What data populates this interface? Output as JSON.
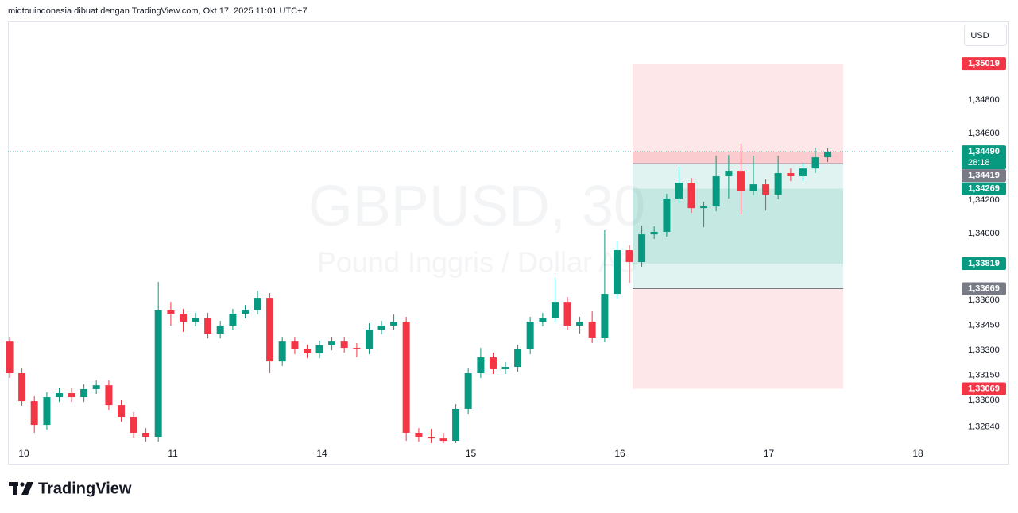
{
  "header": {
    "attribution": "midtouindonesia dibuat dengan TradingView.com, Okt 17, 2025 11:01 UTC+7"
  },
  "currency": "USD",
  "logo": "TradingView",
  "chart_data": {
    "type": "candlestick",
    "symbol": "GBPUSD, 30",
    "description": "Pound Inggris / Dollar AS",
    "up_color": "#089981",
    "down_color": "#f23645",
    "grid": false,
    "xlim": [
      -0.107,
      6.24
    ],
    "xticks": [
      {
        "value": 0,
        "label": "10"
      },
      {
        "value": 1,
        "label": "11"
      },
      {
        "value": 2,
        "label": "14"
      },
      {
        "value": 3,
        "label": "15"
      },
      {
        "value": 4,
        "label": "16"
      },
      {
        "value": 5,
        "label": "17"
      },
      {
        "value": 6,
        "label": "18"
      }
    ],
    "ylim": [
      1.32743,
      1.35267
    ],
    "yticks": [
      {
        "value": 1.348,
        "label": "1,34800"
      },
      {
        "value": 1.346,
        "label": "1,34600"
      },
      {
        "value": 1.342,
        "label": "1,34200"
      },
      {
        "value": 1.34,
        "label": "1,34000"
      },
      {
        "value": 1.336,
        "label": "1,33600"
      },
      {
        "value": 1.3345,
        "label": "1,33450"
      },
      {
        "value": 1.333,
        "label": "1,33300"
      },
      {
        "value": 1.3315,
        "label": "1,33150"
      },
      {
        "value": 1.33,
        "label": "1,33000"
      },
      {
        "value": 1.3284,
        "label": "1,32840"
      }
    ],
    "x": [
      -0.096,
      -0.013,
      0.07,
      0.154,
      0.237,
      0.32,
      0.403,
      0.486,
      0.57,
      0.653,
      0.736,
      0.819,
      0.902,
      0.986,
      1.069,
      1.152,
      1.235,
      1.318,
      1.402,
      1.485,
      1.568,
      1.651,
      1.734,
      1.818,
      1.901,
      1.984,
      2.067,
      2.15,
      2.234,
      2.317,
      2.4,
      2.483,
      2.566,
      2.65,
      2.733,
      2.816,
      2.899,
      2.982,
      3.066,
      3.149,
      3.232,
      3.315,
      3.398,
      3.482,
      3.565,
      3.648,
      3.731,
      3.814,
      3.898,
      3.981,
      4.064,
      4.147,
      4.23,
      4.314,
      4.397,
      4.48,
      4.563,
      4.646,
      4.73,
      4.813,
      4.896,
      4.979,
      5.062,
      5.146,
      5.229,
      5.312,
      5.395
    ],
    "open": [
      1.33352,
      1.33162,
      1.32995,
      1.32852,
      1.33019,
      1.33043,
      1.33019,
      1.33067,
      1.3309,
      1.32971,
      1.329,
      1.32805,
      1.32781,
      1.33543,
      1.33519,
      1.33471,
      1.33495,
      1.334,
      1.33448,
      1.33519,
      1.33543,
      1.33614,
      1.33233,
      1.33352,
      1.33305,
      1.33281,
      1.33329,
      1.33352,
      1.33314,
      1.33305,
      1.33424,
      1.33448,
      1.33471,
      1.32805,
      1.32781,
      1.32771,
      1.32757,
      1.32948,
      1.33162,
      1.33257,
      1.33186,
      1.332,
      1.33305,
      1.33471,
      1.33495,
      1.3359,
      1.33448,
      1.33471,
      1.33376,
      1.33638,
      1.339,
      1.33829,
      1.33995,
      1.3401,
      1.3421,
      1.34305,
      1.34152,
      1.34162,
      1.34343,
      1.34376,
      1.34257,
      1.34295,
      1.34233,
      1.34362,
      1.34343,
      1.3439,
      1.34457
    ],
    "high": [
      1.33381,
      1.3319,
      1.33024,
      1.33048,
      1.33076,
      1.33076,
      1.33095,
      1.33119,
      1.33119,
      1.33,
      1.32929,
      1.32833,
      1.3371,
      1.3359,
      1.33548,
      1.33524,
      1.33524,
      1.33476,
      1.33548,
      1.33571,
      1.33657,
      1.33643,
      1.33381,
      1.33381,
      1.33333,
      1.33357,
      1.33381,
      1.33381,
      1.33343,
      1.33462,
      1.33476,
      1.33514,
      1.335,
      1.32833,
      1.32829,
      1.32805,
      1.32976,
      1.3319,
      1.33314,
      1.33286,
      1.33229,
      1.33333,
      1.335,
      1.33524,
      1.33733,
      1.33619,
      1.335,
      1.33533,
      1.34019,
      1.33952,
      1.33929,
      1.34048,
      1.34043,
      1.34238,
      1.344,
      1.34333,
      1.3419,
      1.34467,
      1.34471,
      1.34538,
      1.34467,
      1.34324,
      1.34467,
      1.3439,
      1.34419,
      1.34514,
      1.3451
    ],
    "low": [
      1.33133,
      1.32967,
      1.32805,
      1.32824,
      1.3299,
      1.3299,
      1.3299,
      1.33038,
      1.32943,
      1.32871,
      1.32776,
      1.32752,
      1.32752,
      1.33448,
      1.3341,
      1.33443,
      1.33371,
      1.33371,
      1.33419,
      1.33491,
      1.33514,
      1.33162,
      1.33205,
      1.33276,
      1.33252,
      1.33252,
      1.333,
      1.33286,
      1.33257,
      1.33276,
      1.33395,
      1.33419,
      1.32757,
      1.32752,
      1.32743,
      1.32743,
      1.32743,
      1.32919,
      1.33133,
      1.33157,
      1.33157,
      1.33171,
      1.33276,
      1.33443,
      1.33467,
      1.33419,
      1.334,
      1.33343,
      1.33348,
      1.3361,
      1.33705,
      1.338,
      1.33967,
      1.33981,
      1.34181,
      1.34124,
      1.34038,
      1.34133,
      1.3421,
      1.34114,
      1.34229,
      1.34138,
      1.34205,
      1.34314,
      1.34314,
      1.34362,
      1.34429
    ],
    "close": [
      1.33162,
      1.32995,
      1.32852,
      1.33019,
      1.33043,
      1.33019,
      1.33067,
      1.3309,
      1.32971,
      1.329,
      1.32805,
      1.32781,
      1.33543,
      1.33519,
      1.33471,
      1.33495,
      1.334,
      1.33448,
      1.33519,
      1.33543,
      1.33614,
      1.33233,
      1.33352,
      1.33305,
      1.33281,
      1.33329,
      1.33352,
      1.33314,
      1.33305,
      1.33424,
      1.33448,
      1.33471,
      1.32805,
      1.32781,
      1.32771,
      1.32757,
      1.32948,
      1.33162,
      1.33257,
      1.33186,
      1.332,
      1.33305,
      1.33471,
      1.33495,
      1.3359,
      1.33448,
      1.33471,
      1.33376,
      1.33638,
      1.339,
      1.33829,
      1.33995,
      1.3401,
      1.3421,
      1.34305,
      1.34152,
      1.34162,
      1.34343,
      1.34376,
      1.34257,
      1.34295,
      1.34233,
      1.34362,
      1.34343,
      1.3439,
      1.34457,
      1.3449
    ],
    "last_price": {
      "value": 1.3449,
      "label": "1,34490"
    },
    "countdown": "28:18",
    "positions": [
      {
        "side": "short",
        "x_start": 4.085,
        "x_end": 5.499,
        "stop": {
          "value": 1.35019,
          "label": "1,35019"
        },
        "entry": {
          "value": 1.34419,
          "label": "1,34419"
        },
        "target": {
          "value": 1.33819,
          "label": "1,33819"
        }
      },
      {
        "side": "long",
        "x_start": 4.085,
        "x_end": 5.499,
        "stop": {
          "value": 1.33069,
          "label": "1,33069"
        },
        "entry": {
          "value": 1.33669,
          "label": "1,33669"
        },
        "target": {
          "value": 1.34269,
          "label": "1,34269"
        }
      }
    ]
  }
}
